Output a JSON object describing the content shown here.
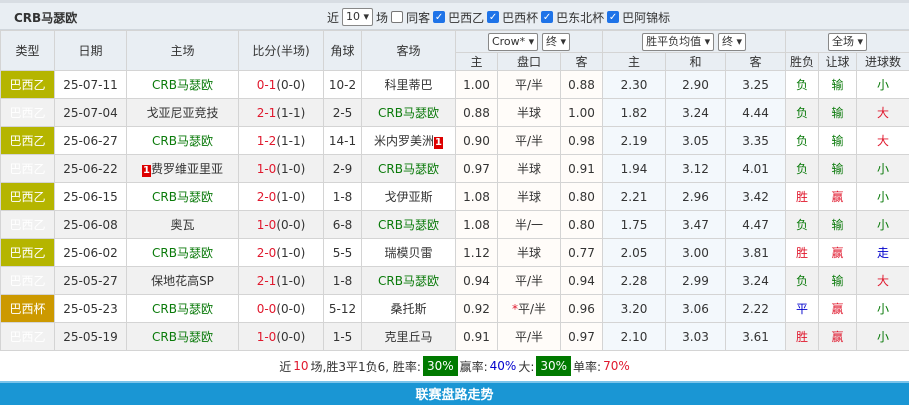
{
  "team": "CRB马瑟欧",
  "filters": {
    "recent_label": "近",
    "recent_value": "10",
    "recent_unit": "场",
    "same_label": "同客",
    "leagues": [
      "巴西乙",
      "巴西杯",
      "巴东北杯",
      "巴阿锦标"
    ]
  },
  "headers": {
    "type": "类型",
    "date": "日期",
    "home": "主场",
    "score": "比分(半场)",
    "corner": "角球",
    "away": "客场",
    "company": "Crow*",
    "hc_term": "终",
    "ox_select": "胜平负均值",
    "ox_term": "终",
    "range": "全场",
    "hc_cols": [
      "主",
      "盘口",
      "客"
    ],
    "ox_cols": [
      "主",
      "和",
      "客"
    ],
    "res_cols": [
      "胜负",
      "让球",
      "进球数"
    ]
  },
  "rows": [
    {
      "type": "巴西乙",
      "date": "25-07-11",
      "home": "CRB马瑟欧",
      "home_red": "",
      "score": "0-1",
      "half": "(0-0)",
      "corner": "10-2",
      "away": "科里蒂巴",
      "away_red": "",
      "h1": "1.00",
      "hl": "平/半",
      "hl_star": "",
      "h2": "0.88",
      "o1": "2.30",
      "ox": "2.90",
      "o2": "3.25",
      "r": "负",
      "rh": "输",
      "rg": "小"
    },
    {
      "type": "巴西乙",
      "date": "25-07-04",
      "home": "戈亚尼亚竞技",
      "home_red": "",
      "score": "2-1",
      "half": "(1-1)",
      "corner": "2-5",
      "away": "CRB马瑟欧",
      "away_red": "",
      "h1": "0.88",
      "hl": "半球",
      "hl_star": "",
      "h2": "1.00",
      "o1": "1.82",
      "ox": "3.24",
      "o2": "4.44",
      "r": "负",
      "rh": "输",
      "rg": "大"
    },
    {
      "type": "巴西乙",
      "date": "25-06-27",
      "home": "CRB马瑟欧",
      "home_red": "",
      "score": "1-2",
      "half": "(1-1)",
      "corner": "14-1",
      "away": "米内罗美洲",
      "away_red": "1",
      "h1": "0.90",
      "hl": "平/半",
      "hl_star": "",
      "h2": "0.98",
      "o1": "2.19",
      "ox": "3.05",
      "o2": "3.35",
      "r": "负",
      "rh": "输",
      "rg": "大"
    },
    {
      "type": "巴西乙",
      "date": "25-06-22",
      "home": "费罗维亚里亚",
      "home_red": "1",
      "score": "1-0",
      "half": "(1-0)",
      "corner": "2-9",
      "away": "CRB马瑟欧",
      "away_red": "",
      "h1": "0.97",
      "hl": "半球",
      "hl_star": "",
      "h2": "0.91",
      "o1": "1.94",
      "ox": "3.12",
      "o2": "4.01",
      "r": "负",
      "rh": "输",
      "rg": "小"
    },
    {
      "type": "巴西乙",
      "date": "25-06-15",
      "home": "CRB马瑟欧",
      "home_red": "",
      "score": "2-0",
      "half": "(1-0)",
      "corner": "1-8",
      "away": "戈伊亚斯",
      "away_red": "",
      "h1": "1.08",
      "hl": "半球",
      "hl_star": "",
      "h2": "0.80",
      "o1": "2.21",
      "ox": "2.96",
      "o2": "3.42",
      "r": "胜",
      "rh": "赢",
      "rg": "小"
    },
    {
      "type": "巴西乙",
      "date": "25-06-08",
      "home": "奥瓦",
      "home_red": "",
      "score": "1-0",
      "half": "(0-0)",
      "corner": "6-8",
      "away": "CRB马瑟欧",
      "away_red": "",
      "h1": "1.08",
      "hl": "半/一",
      "hl_star": "",
      "h2": "0.80",
      "o1": "1.75",
      "ox": "3.47",
      "o2": "4.47",
      "r": "负",
      "rh": "输",
      "rg": "小"
    },
    {
      "type": "巴西乙",
      "date": "25-06-02",
      "home": "CRB马瑟欧",
      "home_red": "",
      "score": "2-0",
      "half": "(1-0)",
      "corner": "5-5",
      "away": "瑞模贝雷",
      "away_red": "",
      "h1": "1.12",
      "hl": "半球",
      "hl_star": "",
      "h2": "0.77",
      "o1": "2.05",
      "ox": "3.00",
      "o2": "3.81",
      "r": "胜",
      "rh": "赢",
      "rg": "走"
    },
    {
      "type": "巴西乙",
      "date": "25-05-27",
      "home": "保地花高SP",
      "home_red": "",
      "score": "2-1",
      "half": "(1-0)",
      "corner": "1-8",
      "away": "CRB马瑟欧",
      "away_red": "",
      "h1": "0.94",
      "hl": "平/半",
      "hl_star": "",
      "h2": "0.94",
      "o1": "2.28",
      "ox": "2.99",
      "o2": "3.24",
      "r": "负",
      "rh": "输",
      "rg": "大"
    },
    {
      "type": "巴西杯",
      "date": "25-05-23",
      "home": "CRB马瑟欧",
      "home_red": "",
      "score": "0-0",
      "half": "(0-0)",
      "corner": "5-12",
      "away": "桑托斯",
      "away_red": "",
      "h1": "0.92",
      "hl": "平/半",
      "hl_star": "*",
      "h2": "0.96",
      "o1": "3.20",
      "ox": "3.06",
      "o2": "2.22",
      "r": "平",
      "rh": "赢",
      "rg": "小"
    },
    {
      "type": "巴西乙",
      "date": "25-05-19",
      "home": "CRB马瑟欧",
      "home_red": "",
      "score": "1-0",
      "half": "(0-0)",
      "corner": "1-5",
      "away": "克里丘马",
      "away_red": "",
      "h1": "0.91",
      "hl": "平/半",
      "hl_star": "",
      "h2": "0.97",
      "o1": "2.10",
      "ox": "3.03",
      "o2": "3.61",
      "r": "胜",
      "rh": "赢",
      "rg": "小"
    }
  ],
  "summary": {
    "p1": "近",
    "n": "10",
    "p2": "场,胜3平1负6, 胜率:",
    "win_rate": "30%",
    "p3": "赢率:",
    "ying_rate": "40%",
    "p4": "大:",
    "big_rate": "30%",
    "p5": "单率:",
    "odd_rate": "70%"
  },
  "footer_bar": "联赛盘路走势",
  "colors": {
    "league": "#b5b500",
    "cup": "#cc9900",
    "win": "#e0182d",
    "lose": "#0a7a0a",
    "draw": "#0000cc",
    "bar": "#1a96d4"
  }
}
